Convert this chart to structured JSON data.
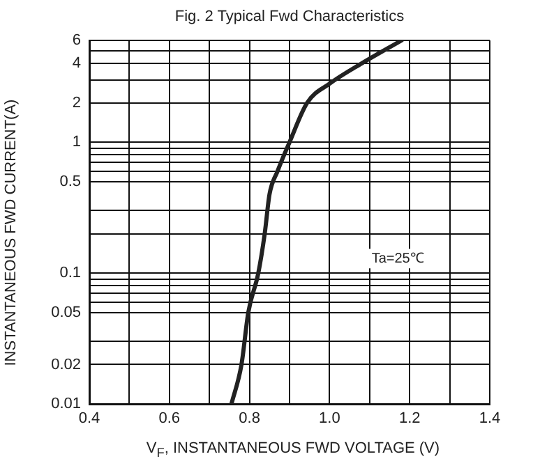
{
  "chart_data": {
    "type": "line",
    "title": "Fig. 2  Typical Fwd Characteristics",
    "xlabel": "V$_{F}$, INSTANTANEOUS FWD VOLTAGE (V)",
    "ylabel": "INSTANTANEOUS FWD CURRENT(A)",
    "annotations": [
      "Ta=25℃"
    ],
    "series": [
      {
        "color": "#222222",
        "x": [
          0.755,
          0.78,
          0.797,
          0.822,
          0.838,
          0.85,
          0.87,
          0.9,
          0.944,
          1.0,
          1.08,
          1.18
        ],
        "values": [
          0.01,
          0.02,
          0.05,
          0.1,
          0.2,
          0.4,
          0.6,
          1,
          2,
          2.8,
          4,
          6
        ]
      }
    ],
    "log": "y",
    "xlim": [
      0.4,
      1.4
    ],
    "ylim": [
      0.01,
      6
    ],
    "xticks": [
      0.4,
      {
        "value": 0.5,
        "label": null
      },
      0.6,
      {
        "value": 0.7,
        "label": null
      },
      0.8,
      {
        "value": 0.9,
        "label": null
      },
      {
        "value": 1.0,
        "label": "1.0"
      },
      {
        "value": 1.1,
        "label": null
      },
      1.2,
      {
        "value": 1.3,
        "label": null
      },
      1.4
    ],
    "yticks": [
      0.01,
      0.02,
      {
        "value": 0.03,
        "label": null
      },
      0.05,
      {
        "value": 0.06,
        "label": null
      },
      {
        "value": 0.07,
        "label": null
      },
      {
        "value": 0.08,
        "label": null
      },
      {
        "value": 0.09,
        "label": null
      },
      0.1,
      {
        "value": 0.2,
        "label": null
      },
      {
        "value": 0.3,
        "label": null
      },
      0.5,
      {
        "value": 0.6,
        "label": null
      },
      {
        "value": 0.7,
        "label": null
      },
      {
        "value": 0.8,
        "label": null
      },
      {
        "value": 0.9,
        "label": null
      },
      1,
      2,
      {
        "value": 3,
        "label": null
      },
      4,
      {
        "value": 5,
        "label": null
      },
      6
    ],
    "grid": true,
    "legend": false,
    "marker": "none",
    "line_style": "solid"
  }
}
